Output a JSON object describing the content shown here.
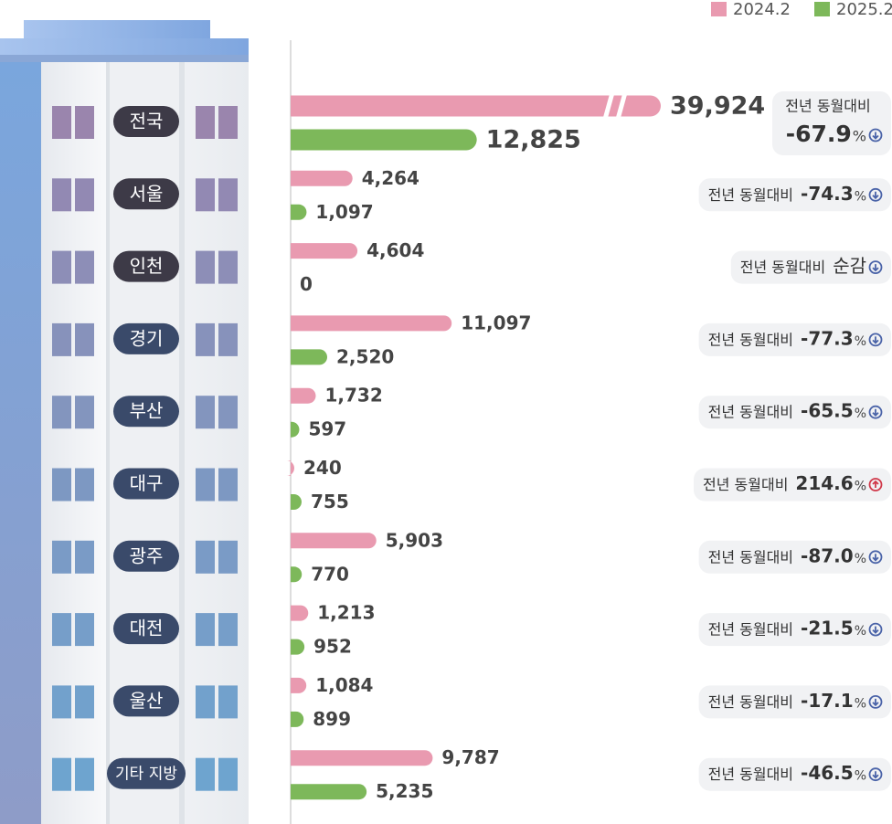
{
  "chart_data": {
    "type": "bar",
    "categories": [
      "전국",
      "서울",
      "인천",
      "경기",
      "부산",
      "대구",
      "광주",
      "대전",
      "울산",
      "기타 지방"
    ],
    "series": [
      {
        "name": "2024.2",
        "color": "#e99ab0",
        "values": [
          39924,
          4264,
          4604,
          11097,
          1732,
          240,
          5903,
          1213,
          1084,
          9787
        ],
        "value_labels": [
          "39,924",
          "4,264",
          "4,604",
          "11,097",
          "1,732",
          "240",
          "5,903",
          "1,213",
          "1,084",
          "9,787"
        ]
      },
      {
        "name": "2025.2",
        "color": "#7db85a",
        "values": [
          12825,
          1097,
          0,
          2520,
          597,
          755,
          770,
          952,
          899,
          5235
        ],
        "value_labels": [
          "12,825",
          "1,097",
          "0",
          "2,520",
          "597",
          "755",
          "770",
          "952",
          "899",
          "5,235"
        ]
      }
    ],
    "xlim": [
      0,
      25000
    ],
    "axis_break": true,
    "change_label": "전년 동월대비",
    "change_unit": "%",
    "changes": [
      -67.9,
      -74.3,
      null,
      -77.3,
      -65.5,
      214.6,
      -87.0,
      -21.5,
      -17.1,
      -46.5
    ],
    "change_labels": [
      "-67.9",
      "-74.3",
      "순감",
      "-77.3",
      "-65.5",
      "214.6",
      "-87.0",
      "-21.5",
      "-17.1",
      "-46.5"
    ],
    "legend": "top-right"
  }
}
